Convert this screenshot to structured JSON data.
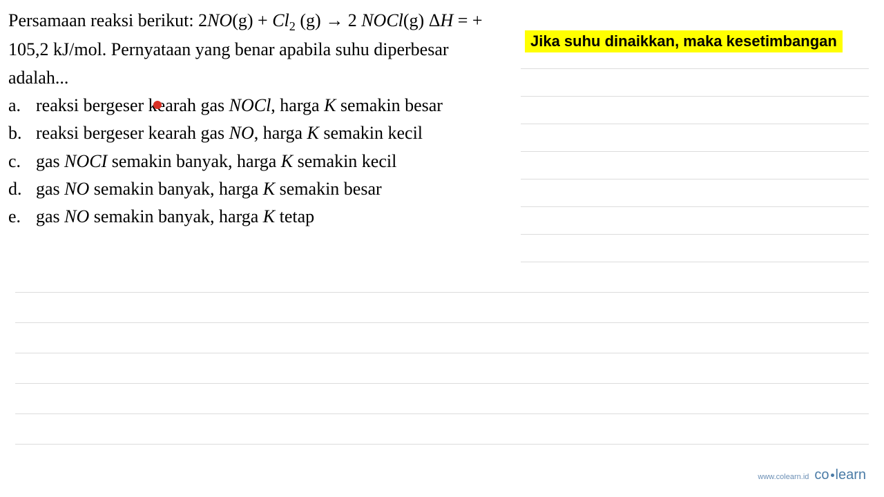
{
  "question": {
    "intro": "Persamaan reaksi berikut: ",
    "equation_part1": "2",
    "equation_NO": "NO",
    "equation_g1": "(g)",
    "equation_plus": " + ",
    "equation_Cl": "Cl",
    "equation_sub2": "2",
    "equation_g2": " (g)",
    "equation_arrow": " → ",
    "equation_prod_coef": " 2 ",
    "equation_NOCl": "NOCl",
    "equation_g3": "(g)",
    "equation_deltaH": " Δ",
    "equation_H": "H",
    "equation_eq": "  =  + 105,2 kJ/mol. ",
    "tail": "Pernyataan yang benar apabila suhu diperbesar adalah..."
  },
  "options": {
    "a": {
      "label": "a.",
      "pre": "reaksi bergeser k",
      "mid": "earah gas ",
      "chem": "NOCl",
      "post1": ", harga ",
      "K": "K",
      "post2": " semakin besar"
    },
    "b": {
      "label": "b.",
      "pre": "reaksi bergeser kearah gas ",
      "chem": "NO",
      "post1": ", harga ",
      "K": "K",
      "post2": " semakin kecil"
    },
    "c": {
      "label": "c.",
      "pre": "gas ",
      "chem": "NOCI",
      "mid": " semakin banyak, harga ",
      "K": "K",
      "post": " semakin kecil"
    },
    "d": {
      "label": "d.",
      "pre": "gas ",
      "chem": "NO",
      "mid": " semakin banyak, harga ",
      "K": "K",
      "post": " semakin besar"
    },
    "e": {
      "label": "e.",
      "pre": "gas ",
      "chem": "NO",
      "mid": " semakin banyak, harga ",
      "K": "K",
      "post": " tetap"
    }
  },
  "highlight": "Jika suhu dinaikkan, maka kesetimbangan",
  "footer": {
    "url": "www.colearn.id",
    "logo_co": "co",
    "logo_learn": "learn"
  },
  "style": {
    "highlight_bg": "#ffff00",
    "red_dot": "#d93025",
    "rule_color": "#dcdcdc",
    "rule_positions_short": [
      99,
      139,
      179,
      219,
      259,
      299,
      339,
      379
    ],
    "rule_positions_full": [
      423,
      467,
      511,
      555,
      599,
      643
    ],
    "logo_color": "#4a7ba6"
  }
}
